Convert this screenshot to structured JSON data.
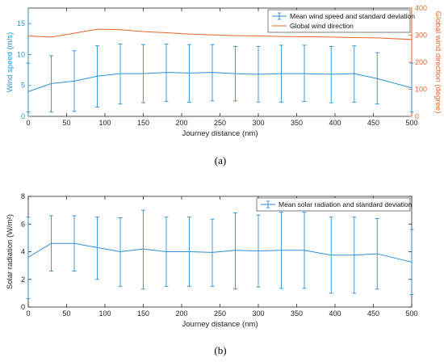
{
  "chart_data": [
    {
      "type": "line",
      "caption": "(a)",
      "xlabel": "Journey distance (nm)",
      "ylabel": "Wind speed (m/s)",
      "y2label": "Global wind direction (degree)",
      "xlim": [
        0,
        500
      ],
      "ylim": [
        0,
        17.5
      ],
      "y2lim": [
        0,
        400
      ],
      "xticks": [
        0,
        50,
        100,
        150,
        200,
        250,
        300,
        350,
        400,
        450,
        500
      ],
      "yticks": [
        0,
        5,
        10,
        15
      ],
      "y2ticks": [
        0,
        100,
        200,
        300,
        400
      ],
      "grid": false,
      "legend_position": "top-right",
      "colors": {
        "primary": "#2f8fd0",
        "secondary": "#e8642c"
      },
      "series": [
        {
          "name": "Mean wind speed and standard deviation",
          "axis": "left",
          "errorbars": true,
          "x": [
            0,
            30,
            60,
            90,
            120,
            150,
            180,
            210,
            240,
            270,
            300,
            330,
            360,
            395,
            425,
            455,
            500
          ],
          "values": [
            4.0,
            5.3,
            5.7,
            6.5,
            6.9,
            6.9,
            7.1,
            7.0,
            7.1,
            6.9,
            6.8,
            6.9,
            6.9,
            6.8,
            6.9,
            6.1,
            4.6
          ],
          "lower": [
            0.7,
            0.7,
            0.8,
            1.5,
            2.0,
            2.2,
            2.4,
            2.3,
            2.5,
            2.5,
            2.3,
            2.3,
            2.4,
            2.2,
            2.3,
            2.0,
            0.7
          ],
          "upper": [
            8.6,
            9.8,
            10.6,
            11.4,
            11.7,
            11.6,
            11.7,
            11.6,
            11.6,
            11.3,
            11.3,
            11.5,
            11.5,
            11.3,
            11.4,
            10.3,
            8.6
          ]
        },
        {
          "name": "Global wind direction",
          "axis": "right",
          "errorbars": false,
          "x": [
            0,
            30,
            60,
            90,
            120,
            150,
            180,
            210,
            240,
            270,
            300,
            330,
            360,
            395,
            425,
            455,
            500
          ],
          "values": [
            297,
            293,
            307,
            322,
            320,
            313,
            309,
            304,
            301,
            298,
            297,
            295,
            294,
            293,
            291,
            290,
            284
          ]
        }
      ]
    },
    {
      "type": "line",
      "caption": "(b)",
      "xlabel": "Journey distance (nm)",
      "ylabel": "Solar radiation (W/m²)",
      "xlim": [
        0,
        500
      ],
      "ylim": [
        0,
        8
      ],
      "xticks": [
        0,
        50,
        100,
        150,
        200,
        250,
        300,
        350,
        400,
        450,
        500
      ],
      "yticks": [
        0,
        2,
        4,
        6,
        8
      ],
      "grid": false,
      "legend_position": "top-right",
      "colors": {
        "primary": "#2f8fd0"
      },
      "series": [
        {
          "name": "Mean solar radiation and standard deviation",
          "axis": "left",
          "errorbars": true,
          "x": [
            0,
            30,
            60,
            90,
            120,
            150,
            180,
            210,
            240,
            270,
            300,
            330,
            360,
            395,
            425,
            455,
            500
          ],
          "values": [
            3.6,
            4.6,
            4.6,
            4.3,
            4.0,
            4.2,
            4.0,
            4.0,
            3.95,
            4.1,
            4.05,
            4.1,
            4.1,
            3.75,
            3.75,
            3.85,
            3.25
          ],
          "lower": [
            0.6,
            2.6,
            2.6,
            2.0,
            1.5,
            1.3,
            1.5,
            1.5,
            1.5,
            1.3,
            1.45,
            1.35,
            1.35,
            1.0,
            1.0,
            1.3,
            0.9
          ],
          "upper": [
            6.5,
            6.6,
            6.6,
            6.5,
            6.45,
            7.0,
            6.5,
            6.5,
            6.35,
            6.8,
            6.65,
            6.85,
            6.85,
            6.5,
            6.5,
            6.4,
            5.6
          ]
        }
      ]
    }
  ]
}
